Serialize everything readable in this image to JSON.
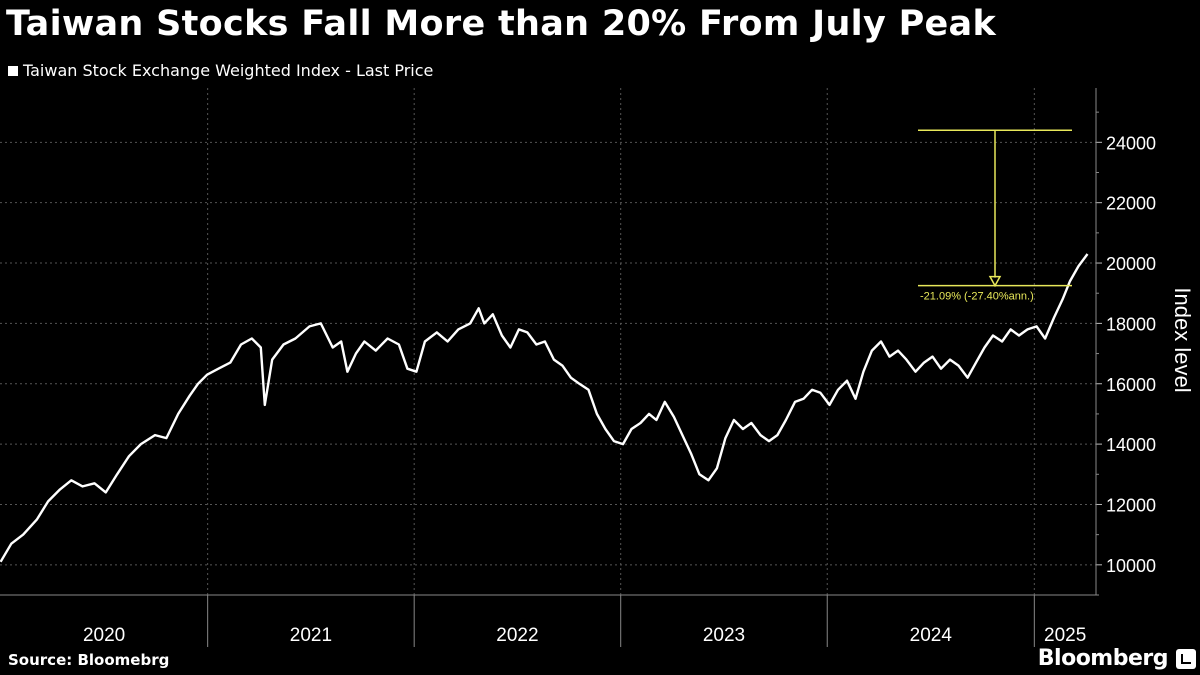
{
  "title": "Taiwan Stocks Fall More than 20% From July Peak",
  "legend_label": "Taiwan Stock Exchange Weighted Index - Last Price",
  "source": "Source: Bloomebrg",
  "brand": "Bloomberg",
  "colors": {
    "background": "#000000",
    "line": "#ffffff",
    "annotation": "#e8e85a",
    "grid": "#555555"
  },
  "chart_data": {
    "type": "line",
    "title": "Taiwan Stocks Fall More than 20% From July Peak",
    "ylabel": "Index level",
    "xlabel": "",
    "ylim": [
      9000,
      25800
    ],
    "yticks": [
      10000,
      12000,
      14000,
      16000,
      18000,
      20000,
      22000,
      24000
    ],
    "xlim": [
      "2019-12-31",
      "2025-04-20"
    ],
    "xtick_labels": [
      "2020",
      "2021",
      "2022",
      "2023",
      "2024",
      "2025"
    ],
    "grid": true,
    "legend_position": "top-left",
    "series": [
      {
        "name": "Taiwan Stock Exchange Weighted Index - Last Price",
        "points": [
          [
            "2020-01-01",
            10100
          ],
          [
            "2020-01-20",
            10700
          ],
          [
            "2020-02-10",
            11000
          ],
          [
            "2020-03-05",
            11500
          ],
          [
            "2020-03-25",
            12100
          ],
          [
            "2020-04-15",
            12500
          ],
          [
            "2020-05-05",
            12800
          ],
          [
            "2020-05-25",
            12600
          ],
          [
            "2020-06-15",
            12700
          ],
          [
            "2020-07-05",
            12400
          ],
          [
            "2020-07-25",
            13000
          ],
          [
            "2020-08-15",
            13600
          ],
          [
            "2020-09-05",
            14000
          ],
          [
            "2020-09-30",
            14300
          ],
          [
            "2020-10-20",
            14200
          ],
          [
            "2020-11-10",
            15000
          ],
          [
            "2020-11-30",
            15600
          ],
          [
            "2020-12-15",
            16000
          ],
          [
            "2020-12-31",
            16300
          ],
          [
            "2021-01-20",
            16500
          ],
          [
            "2021-02-10",
            16700
          ],
          [
            "2021-03-01",
            17300
          ],
          [
            "2021-03-20",
            17500
          ],
          [
            "2021-04-05",
            17200
          ],
          [
            "2021-04-12",
            15300
          ],
          [
            "2021-04-25",
            16800
          ],
          [
            "2021-05-15",
            17300
          ],
          [
            "2021-06-05",
            17500
          ],
          [
            "2021-06-30",
            17900
          ],
          [
            "2021-07-20",
            18000
          ],
          [
            "2021-08-10",
            17200
          ],
          [
            "2021-08-25",
            17400
          ],
          [
            "2021-09-05",
            16400
          ],
          [
            "2021-09-20",
            17000
          ],
          [
            "2021-10-05",
            17400
          ],
          [
            "2021-10-25",
            17100
          ],
          [
            "2021-11-15",
            17500
          ],
          [
            "2021-12-05",
            17300
          ],
          [
            "2021-12-20",
            16500
          ],
          [
            "2022-01-05",
            16400
          ],
          [
            "2022-01-20",
            17400
          ],
          [
            "2022-02-10",
            17700
          ],
          [
            "2022-03-01",
            17400
          ],
          [
            "2022-03-20",
            17800
          ],
          [
            "2022-04-10",
            18000
          ],
          [
            "2022-04-25",
            18500
          ],
          [
            "2022-05-05",
            18000
          ],
          [
            "2022-05-20",
            18300
          ],
          [
            "2022-06-05",
            17600
          ],
          [
            "2022-06-20",
            17200
          ],
          [
            "2022-07-05",
            17800
          ],
          [
            "2022-07-20",
            17700
          ],
          [
            "2022-08-05",
            17300
          ],
          [
            "2022-08-20",
            17400
          ],
          [
            "2022-09-05",
            16800
          ],
          [
            "2022-09-20",
            16600
          ],
          [
            "2022-10-05",
            16200
          ],
          [
            "2022-10-20",
            16000
          ],
          [
            "2022-11-05",
            15800
          ],
          [
            "2022-11-20",
            15000
          ],
          [
            "2022-12-05",
            14500
          ],
          [
            "2022-12-20",
            14100
          ],
          [
            "2023-01-05",
            14000
          ],
          [
            "2023-01-20",
            14500
          ],
          [
            "2023-02-05",
            14700
          ],
          [
            "2023-02-20",
            15000
          ],
          [
            "2023-03-05",
            14800
          ],
          [
            "2023-03-20",
            15400
          ],
          [
            "2023-04-05",
            14900
          ],
          [
            "2023-04-20",
            14300
          ],
          [
            "2023-05-05",
            13700
          ],
          [
            "2023-05-20",
            13000
          ],
          [
            "2023-06-05",
            12800
          ],
          [
            "2023-06-20",
            13200
          ],
          [
            "2023-07-05",
            14200
          ],
          [
            "2023-07-20",
            14800
          ],
          [
            "2023-08-05",
            14500
          ],
          [
            "2023-08-20",
            14700
          ],
          [
            "2023-09-05",
            14300
          ],
          [
            "2023-09-20",
            14100
          ],
          [
            "2023-10-05",
            14300
          ],
          [
            "2023-10-20",
            14800
          ],
          [
            "2023-11-05",
            15400
          ],
          [
            "2023-11-20",
            15500
          ],
          [
            "2023-12-05",
            15800
          ],
          [
            "2023-12-20",
            15700
          ],
          [
            "2024-01-05",
            15300
          ],
          [
            "2024-01-20",
            15800
          ],
          [
            "2024-02-05",
            16100
          ],
          [
            "2024-02-20",
            15500
          ],
          [
            "2024-03-05",
            16400
          ],
          [
            "2024-03-20",
            17100
          ],
          [
            "2024-04-05",
            17400
          ],
          [
            "2024-04-20",
            16900
          ],
          [
            "2024-05-05",
            17100
          ],
          [
            "2024-05-20",
            16800
          ],
          [
            "2024-06-05",
            16400
          ],
          [
            "2024-06-20",
            16700
          ],
          [
            "2024-07-05",
            16900
          ],
          [
            "2024-07-20",
            16500
          ],
          [
            "2024-08-05",
            16800
          ],
          [
            "2024-08-20",
            16600
          ],
          [
            "2024-09-05",
            16200
          ],
          [
            "2024-09-20",
            16700
          ],
          [
            "2024-10-05",
            17200
          ],
          [
            "2024-10-20",
            17600
          ],
          [
            "2024-11-05",
            17400
          ],
          [
            "2024-11-20",
            17800
          ],
          [
            "2024-12-05",
            17600
          ],
          [
            "2024-12-20",
            17800
          ],
          [
            "2025-01-05",
            17900
          ],
          [
            "2025-01-20",
            17500
          ],
          [
            "2025-02-05",
            18200
          ],
          [
            "2025-02-20",
            18800
          ],
          [
            "2025-03-05",
            19400
          ],
          [
            "2025-03-20",
            19900
          ],
          [
            "2025-04-05",
            20300
          ]
        ]
      }
    ],
    "annotation": {
      "text": "-21.09% (-27.40%ann.)"
    }
  }
}
